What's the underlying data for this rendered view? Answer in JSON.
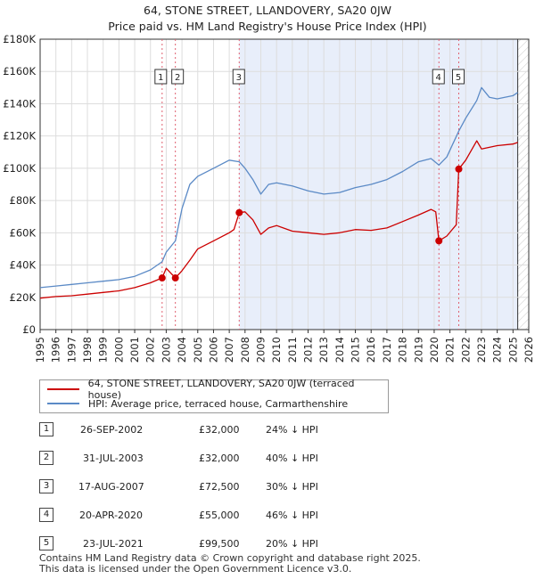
{
  "title": "64, STONE STREET, LLANDOVERY, SA20 0JW",
  "subtitle": "Price paid vs. HM Land Registry's House Price Index (HPI)",
  "colors": {
    "property": "#cc0000",
    "hpi": "#5b8ac6",
    "shade": "#e8eefa",
    "marker_line": "#e06070"
  },
  "chart_data": {
    "type": "line",
    "xlim": [
      1995,
      2026
    ],
    "ylim": [
      0,
      180000
    ],
    "x_ticks": [
      "1995",
      "1996",
      "1997",
      "1998",
      "1999",
      "2000",
      "2001",
      "2002",
      "2003",
      "2004",
      "2005",
      "2006",
      "2007",
      "2008",
      "2009",
      "2010",
      "2011",
      "2012",
      "2013",
      "2014",
      "2015",
      "2016",
      "2017",
      "2018",
      "2019",
      "2020",
      "2021",
      "2022",
      "2023",
      "2024",
      "2025",
      "2026"
    ],
    "y_ticks": [
      {
        "value": 0,
        "label": "£0"
      },
      {
        "value": 20000,
        "label": "£20K"
      },
      {
        "value": 40000,
        "label": "£40K"
      },
      {
        "value": 60000,
        "label": "£60K"
      },
      {
        "value": 80000,
        "label": "£80K"
      },
      {
        "value": 100000,
        "label": "£100K"
      },
      {
        "value": 120000,
        "label": "£120K"
      },
      {
        "value": 140000,
        "label": "£140K"
      },
      {
        "value": 160000,
        "label": "£160K"
      },
      {
        "value": 180000,
        "label": "£180K"
      }
    ],
    "shaded_range": [
      2007.63,
      2025.3
    ],
    "series": [
      {
        "name": "64, STONE STREET, LLANDOVERY, SA20 0JW (terraced house)",
        "color": "#cc0000",
        "x": [
          1995,
          1996,
          1997,
          1998,
          1999,
          2000,
          2001,
          2002,
          2002.74,
          2003.0,
          2003.58,
          2004,
          2004.5,
          2005,
          2006,
          2007,
          2007.3,
          2007.63,
          2008,
          2008.5,
          2009,
          2009.5,
          2010,
          2011,
          2012,
          2013,
          2014,
          2015,
          2016,
          2017,
          2018,
          2019,
          2019.8,
          2020.1,
          2020.3,
          2020.8,
          2021.4,
          2021.56,
          2022,
          2022.7,
          2023,
          2024,
          2025,
          2025.3
        ],
        "y": [
          19500,
          20500,
          21000,
          22000,
          23000,
          24000,
          26000,
          29000,
          32000,
          38000,
          32000,
          36500,
          43000,
          50000,
          55000,
          60000,
          62000,
          72500,
          73000,
          68000,
          59000,
          63000,
          64500,
          61000,
          60000,
          59000,
          60000,
          62000,
          61500,
          63000,
          67000,
          71000,
          74500,
          73000,
          55000,
          58000,
          65000,
          99500,
          105000,
          117000,
          112000,
          114000,
          115000,
          116000
        ]
      },
      {
        "name": "HPI: Average price, terraced house, Carmarthenshire",
        "color": "#5b8ac6",
        "x": [
          1995,
          1996,
          1997,
          1998,
          1999,
          2000,
          2001,
          2002,
          2002.74,
          2003,
          2003.58,
          2004,
          2004.5,
          2005,
          2006,
          2007,
          2007.63,
          2008,
          2008.5,
          2009,
          2009.5,
          2010,
          2011,
          2012,
          2013,
          2014,
          2015,
          2016,
          2017,
          2018,
          2019,
          2019.8,
          2020.3,
          2020.8,
          2021.56,
          2022,
          2022.7,
          2023,
          2023.5,
          2024,
          2025,
          2025.3
        ],
        "y": [
          26000,
          27000,
          28000,
          29000,
          30000,
          31000,
          33000,
          37000,
          42000,
          48000,
          55000,
          75000,
          90000,
          95000,
          100000,
          105000,
          104000,
          100000,
          93000,
          84000,
          90000,
          91000,
          89000,
          86000,
          84000,
          85000,
          88000,
          90000,
          93000,
          98000,
          104000,
          106000,
          102000,
          107000,
          123000,
          131000,
          142000,
          150000,
          144000,
          143000,
          145000,
          147000
        ]
      }
    ],
    "transactions": [
      {
        "id": "1",
        "x": 2002.74,
        "y": 32000,
        "date": "26-SEP-2002",
        "price": "£32,000",
        "hpi": "24% ↓ HPI"
      },
      {
        "id": "2",
        "x": 2003.58,
        "y": 32000,
        "date": "31-JUL-2003",
        "price": "£32,000",
        "hpi": "40% ↓ HPI"
      },
      {
        "id": "3",
        "x": 2007.63,
        "y": 72500,
        "date": "17-AUG-2007",
        "price": "£72,500",
        "hpi": "30% ↓ HPI"
      },
      {
        "id": "4",
        "x": 2020.3,
        "y": 55000,
        "date": "20-APR-2020",
        "price": "£55,000",
        "hpi": "46% ↓ HPI"
      },
      {
        "id": "5",
        "x": 2021.56,
        "y": 99500,
        "date": "23-JUL-2021",
        "price": "£99,500",
        "hpi": "20% ↓ HPI"
      }
    ]
  },
  "legend": {
    "property_label": "64, STONE STREET, LLANDOVERY, SA20 0JW (terraced house)",
    "hpi_label": "HPI: Average price, terraced house, Carmarthenshire"
  },
  "footer": {
    "line1": "Contains HM Land Registry data © Crown copyright and database right 2025.",
    "line2": "This data is licensed under the Open Government Licence v3.0."
  }
}
